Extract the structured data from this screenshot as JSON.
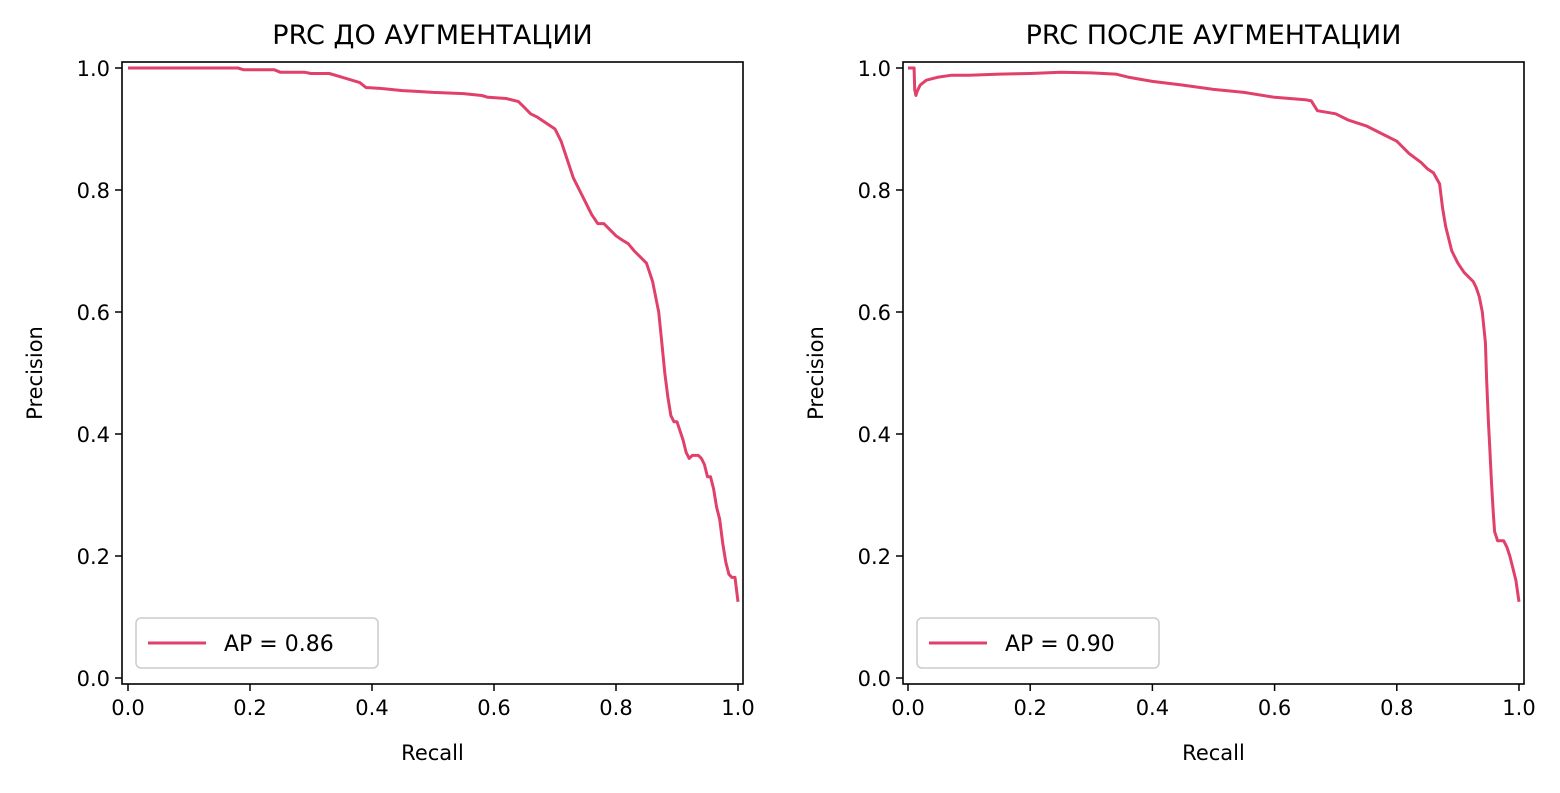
{
  "chart_data": [
    {
      "type": "line",
      "title": "PRC ДО АУГМЕНТАЦИИ",
      "xlabel": "Recall",
      "ylabel": "Precision",
      "xlim": [
        0.0,
        1.0
      ],
      "ylim": [
        0.0,
        1.0
      ],
      "xticks": [
        "0.0",
        "0.2",
        "0.4",
        "0.6",
        "0.8",
        "1.0"
      ],
      "yticks": [
        "0.0",
        "0.2",
        "0.4",
        "0.6",
        "0.8",
        "1.0"
      ],
      "legend_position": "lower-left",
      "color": "#e0406a",
      "series": [
        {
          "name": "AP = 0.86",
          "x": [
            0.0,
            0.18,
            0.19,
            0.24,
            0.25,
            0.29,
            0.3,
            0.33,
            0.35,
            0.38,
            0.39,
            0.42,
            0.45,
            0.47,
            0.5,
            0.55,
            0.58,
            0.59,
            0.62,
            0.64,
            0.65,
            0.66,
            0.67,
            0.7,
            0.71,
            0.72,
            0.73,
            0.74,
            0.75,
            0.76,
            0.77,
            0.78,
            0.79,
            0.8,
            0.81,
            0.82,
            0.83,
            0.84,
            0.85,
            0.86,
            0.87,
            0.875,
            0.88,
            0.885,
            0.89,
            0.895,
            0.9,
            0.91,
            0.915,
            0.92,
            0.925,
            0.93,
            0.935,
            0.94,
            0.945,
            0.95,
            0.955,
            0.96,
            0.965,
            0.97,
            0.975,
            0.98,
            0.985,
            0.99,
            0.995,
            1.0
          ],
          "y": [
            1.0,
            1.0,
            0.997,
            0.997,
            0.993,
            0.993,
            0.991,
            0.991,
            0.985,
            0.976,
            0.968,
            0.966,
            0.963,
            0.962,
            0.96,
            0.958,
            0.955,
            0.952,
            0.95,
            0.945,
            0.935,
            0.925,
            0.92,
            0.9,
            0.88,
            0.85,
            0.82,
            0.8,
            0.78,
            0.76,
            0.745,
            0.745,
            0.735,
            0.725,
            0.718,
            0.712,
            0.7,
            0.69,
            0.68,
            0.65,
            0.6,
            0.55,
            0.5,
            0.46,
            0.43,
            0.42,
            0.42,
            0.39,
            0.37,
            0.36,
            0.365,
            0.365,
            0.365,
            0.36,
            0.35,
            0.33,
            0.33,
            0.31,
            0.28,
            0.26,
            0.22,
            0.19,
            0.17,
            0.165,
            0.165,
            0.125
          ]
        }
      ]
    },
    {
      "type": "line",
      "title": "PRC ПОСЛЕ АУГМЕНТАЦИИ",
      "xlabel": "Recall",
      "ylabel": "Precision",
      "xlim": [
        0.0,
        1.0
      ],
      "ylim": [
        0.0,
        1.0
      ],
      "xticks": [
        "0.0",
        "0.2",
        "0.4",
        "0.6",
        "0.8",
        "1.0"
      ],
      "yticks": [
        "0.0",
        "0.2",
        "0.4",
        "0.6",
        "0.8",
        "1.0"
      ],
      "legend_position": "lower-left",
      "color": "#e0406a",
      "series": [
        {
          "name": "AP = 0.90",
          "x": [
            0.0,
            0.01,
            0.011,
            0.013,
            0.015,
            0.02,
            0.03,
            0.05,
            0.07,
            0.1,
            0.15,
            0.2,
            0.25,
            0.3,
            0.34,
            0.36,
            0.4,
            0.45,
            0.5,
            0.55,
            0.6,
            0.65,
            0.66,
            0.67,
            0.7,
            0.72,
            0.75,
            0.78,
            0.8,
            0.82,
            0.84,
            0.85,
            0.86,
            0.87,
            0.875,
            0.88,
            0.89,
            0.9,
            0.91,
            0.92,
            0.925,
            0.93,
            0.935,
            0.94,
            0.945,
            0.947,
            0.95,
            0.952,
            0.955,
            0.958,
            0.96,
            0.965,
            0.97,
            0.975,
            0.98,
            0.985,
            0.99,
            0.995,
            1.0
          ],
          "y": [
            1.0,
            1.0,
            0.965,
            0.955,
            0.962,
            0.972,
            0.98,
            0.985,
            0.988,
            0.988,
            0.99,
            0.991,
            0.993,
            0.992,
            0.99,
            0.985,
            0.978,
            0.972,
            0.965,
            0.96,
            0.952,
            0.948,
            0.946,
            0.93,
            0.925,
            0.915,
            0.905,
            0.89,
            0.88,
            0.86,
            0.845,
            0.835,
            0.828,
            0.81,
            0.77,
            0.74,
            0.7,
            0.68,
            0.665,
            0.655,
            0.65,
            0.64,
            0.625,
            0.6,
            0.55,
            0.49,
            0.42,
            0.38,
            0.32,
            0.27,
            0.24,
            0.225,
            0.225,
            0.225,
            0.215,
            0.2,
            0.18,
            0.16,
            0.125
          ]
        }
      ]
    }
  ]
}
